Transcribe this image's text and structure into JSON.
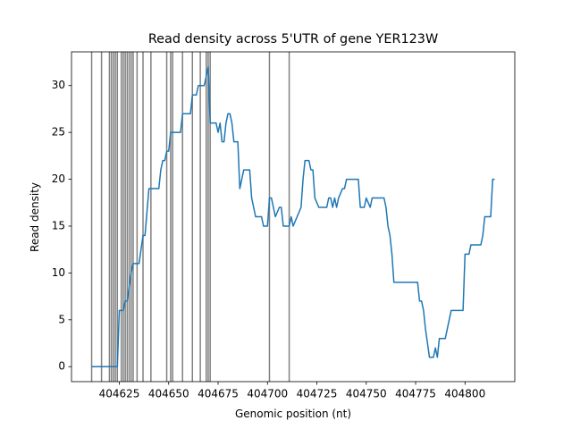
{
  "chart_data": {
    "type": "line",
    "title": "Read density across 5'UTR of gene YER123W",
    "x_label": "Genomic position (nt)",
    "y_label": "Read density",
    "x": [
      404611,
      404624,
      404625,
      404627,
      404628,
      404629,
      404631,
      404632,
      404635,
      404637,
      404638,
      404640,
      404645,
      404646,
      404647,
      404648,
      404649,
      404650,
      404651,
      404656,
      404657,
      404661,
      404662,
      404664,
      404665,
      404668,
      404669,
      404670,
      404671,
      404674,
      404675,
      404676,
      404677,
      404678,
      404679,
      404680,
      404681,
      404682,
      404683,
      404685,
      404686,
      404687,
      404688,
      404691,
      404692,
      404693,
      404694,
      404697,
      404698,
      404700,
      404701,
      404702,
      404703,
      404704,
      404706,
      404707,
      404708,
      404711,
      404712,
      404713,
      404715,
      404717,
      404718,
      404719,
      404721,
      404722,
      404723,
      404724,
      404726,
      404730,
      404731,
      404732,
      404733,
      404734,
      404735,
      404736,
      404738,
      404739,
      404740,
      404746,
      404747,
      404749,
      404750,
      404752,
      404753,
      404759,
      404760,
      404761,
      404762,
      404763,
      404764,
      404776,
      404777,
      404778,
      404779,
      404780,
      404782,
      404784,
      404785,
      404786,
      404787,
      404790,
      404791,
      404793,
      404799,
      404800,
      404802,
      404803,
      404808,
      404809,
      404810,
      404813,
      404814,
      404815
    ],
    "series": [
      {
        "color": "#1f77b4",
        "values": [
          0,
          0,
          6,
          6,
          7,
          7,
          10,
          11,
          11,
          14,
          14,
          19,
          19,
          21,
          22,
          22,
          23,
          23,
          25,
          25,
          27,
          27,
          29,
          29,
          30,
          30,
          31,
          32,
          26,
          26,
          25,
          26,
          24,
          24,
          26,
          27,
          27,
          26,
          24,
          24,
          19,
          20,
          21,
          21,
          18,
          17,
          16,
          16,
          15,
          15,
          18,
          18,
          17,
          16,
          17,
          17,
          15,
          15,
          16,
          15,
          16,
          17,
          20,
          22,
          22,
          21,
          21,
          18,
          17,
          17,
          18,
          18,
          17,
          18,
          17,
          18,
          19,
          19,
          20,
          20,
          17,
          17,
          18,
          17,
          18,
          18,
          17,
          15,
          14,
          12,
          9,
          9,
          7,
          7,
          6,
          4,
          1,
          1,
          2,
          1,
          3,
          3,
          4,
          6,
          6,
          12,
          12,
          13,
          13,
          14,
          16,
          16,
          20,
          20
        ]
      }
    ],
    "vlines": [
      404611,
      404616,
      404620,
      404621,
      404622,
      404623,
      404624,
      404626,
      404627,
      404628,
      404629,
      404630,
      404631,
      404632,
      404634,
      404637,
      404641,
      404649,
      404651,
      404652,
      404657,
      404662,
      404666,
      404669,
      404670,
      404671,
      404701,
      404711
    ],
    "vline_color": "#808080",
    "xlim": [
      404600.8,
      404825.2
    ],
    "xticks": [
      404625,
      404650,
      404675,
      404700,
      404725,
      404750,
      404775,
      404800
    ],
    "ylim": [
      -1.6,
      33.6
    ],
    "yticks": [
      0,
      5,
      10,
      15,
      20,
      25,
      30
    ],
    "grid": false
  }
}
